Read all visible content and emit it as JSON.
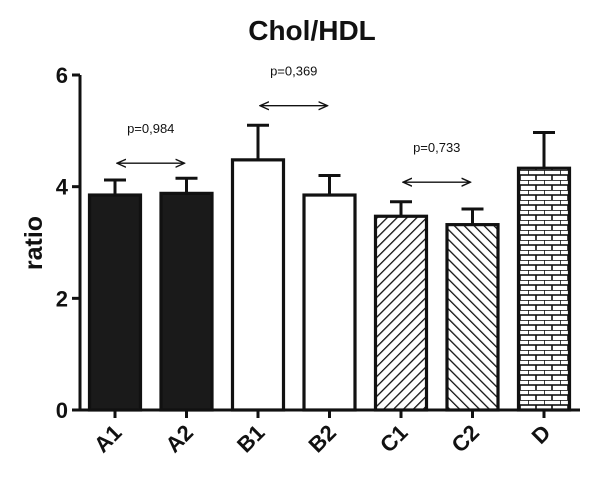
{
  "chart_data": {
    "type": "bar",
    "title": "Chol/HDL",
    "xlabel": "",
    "ylabel": "ratio",
    "ylim": [
      0,
      6
    ],
    "yticks": [
      "0",
      "2",
      "4",
      "6"
    ],
    "grid": false,
    "categories": [
      "A1",
      "A2",
      "B1",
      "B2",
      "C1",
      "C2",
      "D"
    ],
    "values": [
      3.85,
      3.88,
      4.48,
      3.85,
      3.47,
      3.32,
      4.33
    ],
    "errors": [
      0.27,
      0.27,
      0.62,
      0.35,
      0.26,
      0.28,
      0.64
    ],
    "fills": [
      "solid",
      "solid",
      "empty",
      "empty",
      "hatch-right",
      "hatch-left",
      "brick"
    ],
    "comparisons": [
      {
        "from": 0,
        "to": 1,
        "label": "p=0,984",
        "y": 4.42
      },
      {
        "from": 2,
        "to": 3,
        "label": "p=0,369",
        "y": 5.45
      },
      {
        "from": 4,
        "to": 5,
        "label": "p=0,733",
        "y": 4.08
      }
    ],
    "colors": {
      "bar_solid": "#1a1a1a",
      "stroke": "#111111",
      "background": "#ffffff"
    }
  }
}
